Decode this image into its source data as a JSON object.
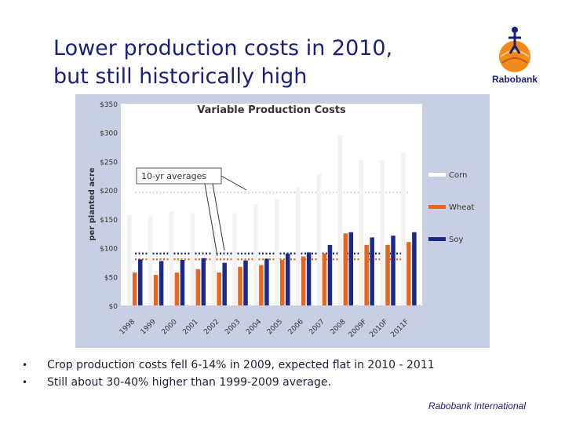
{
  "slide": {
    "title_line1": "Lower production costs in 2010,",
    "title_line2": "but still historically high",
    "logo_text": "Rabobank",
    "bullets": [
      "Crop production costs fell 6-14% in 2009, expected flat in 2010 - 2011",
      "Still about 30-40% higher than 1999-2009 average."
    ],
    "footer": "Rabobank International"
  },
  "colors": {
    "background": "#c9cfe3",
    "corn": "#f2f2f2",
    "wheat": "#e8651e",
    "soy": "#1b2a8a",
    "title": "#1a1f7a"
  },
  "chart_data": {
    "type": "bar",
    "title": "Variable Production Costs",
    "ylabel": "per planted acre",
    "ylim": [
      0,
      350
    ],
    "yticks": [
      "$0",
      "$50",
      "$100",
      "$150",
      "$200",
      "$250",
      "$300",
      "$350"
    ],
    "categories": [
      "1998",
      "1999",
      "2000",
      "2001",
      "2002",
      "2003",
      "2004",
      "2005",
      "2006",
      "2007",
      "2008",
      "2009F",
      "2010F",
      "2011F"
    ],
    "series": [
      {
        "name": "Corn",
        "values": [
          157,
          155,
          163,
          160,
          143,
          160,
          175,
          185,
          205,
          228,
          295,
          252,
          252,
          264
        ]
      },
      {
        "name": "Wheat",
        "values": [
          57,
          53,
          57,
          63,
          57,
          67,
          70,
          79,
          85,
          90,
          125,
          105,
          105,
          110
        ]
      },
      {
        "name": "Soy",
        "values": [
          80,
          77,
          79,
          82,
          74,
          78,
          81,
          90,
          92,
          105,
          127,
          118,
          121,
          127
        ]
      }
    ],
    "reference_lines": [
      {
        "series": "Corn",
        "value": 196
      },
      {
        "series": "Wheat",
        "value": 80
      },
      {
        "series": "Soy",
        "value": 90
      }
    ],
    "annotation": "10-yr averages",
    "legend_position": "right",
    "grid": false
  }
}
